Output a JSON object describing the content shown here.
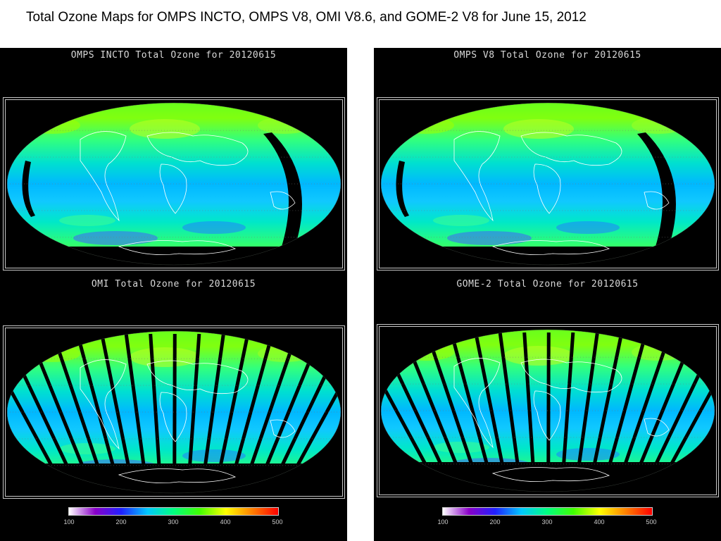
{
  "page": {
    "title": "Total Ozone Maps for OMPS INCTO, OMPS V8, OMI V8.6, and GOME-2 V8 for June 15, 2012"
  },
  "maps": [
    {
      "title": "OMPS INCTO Total Ozone for 20120615",
      "gaps": "single"
    },
    {
      "title": "OMPS V8 Total Ozone for 20120615",
      "gaps": "single"
    },
    {
      "title": "OMI Total Ozone for 20120615",
      "gaps": "many"
    },
    {
      "title": "GOME-2 Total Ozone for 20120615",
      "gaps": "many"
    }
  ],
  "colorbar": {
    "ticks": [
      "100",
      "200",
      "300",
      "400",
      "500"
    ],
    "min": 100,
    "max": 500,
    "colors": [
      "#ffffff",
      "#8a00c8",
      "#2020ff",
      "#00c8ff",
      "#00ff80",
      "#40ff00",
      "#ffff00",
      "#ff8000",
      "#ff0000"
    ]
  }
}
